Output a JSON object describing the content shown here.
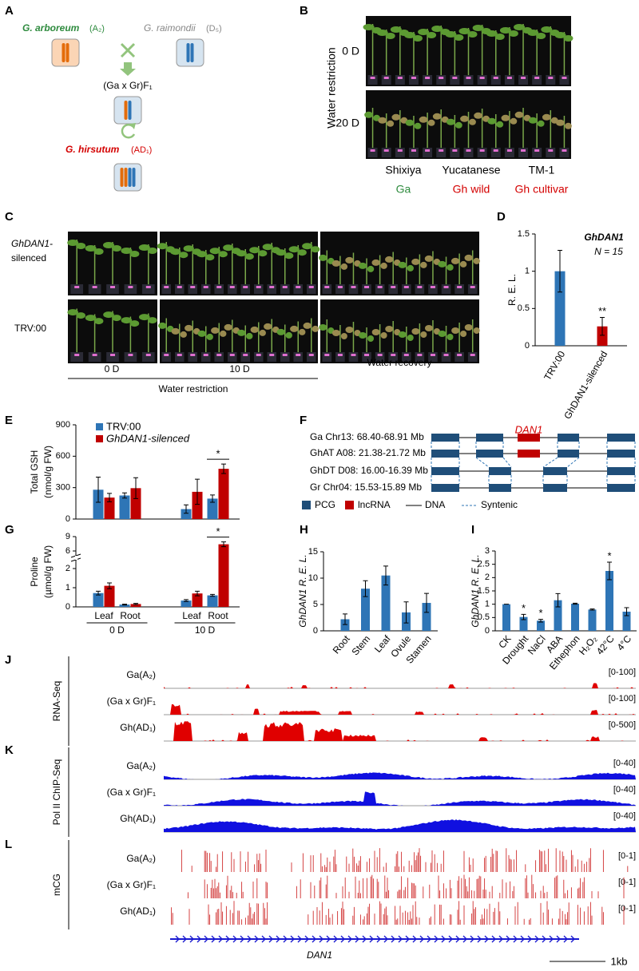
{
  "panel_labels": [
    "A",
    "B",
    "C",
    "D",
    "E",
    "F",
    "G",
    "H",
    "I",
    "J",
    "K",
    "L"
  ],
  "panel_a": {
    "parent1": "G. arboreum",
    "parent1_genome": "(A₂)",
    "parent2": "G. raimondii",
    "parent2_genome": "(D₅)",
    "hybrid": "(Ga x Gr)F₁",
    "polyploid": "G. hirsutum",
    "polyploid_genome": "(AD₁)"
  },
  "panel_b": {
    "axis_label": "Water restriction",
    "rows": [
      "0 D",
      "20 D"
    ],
    "accessions": [
      "Shixiya",
      "Yucatanese",
      "TM-1"
    ],
    "types": [
      "Ga",
      "Gh wild",
      "Gh cultivar"
    ]
  },
  "panel_c": {
    "row1_label_lines": [
      "GhDAN1-",
      "silenced"
    ],
    "row2_label": "TRV:00",
    "timepoints": [
      "0 D",
      "10 D",
      "Water recovery"
    ],
    "axis_label": "Water restriction"
  },
  "chart_data": [
    {
      "type": "bar",
      "ylabel": "R. E. L.",
      "annotation": [
        "GhDAN1",
        "N = 15"
      ],
      "categories": [
        "TRV:00",
        "GhDAN1-silenced"
      ],
      "values": [
        1,
        0.26
      ],
      "errors": [
        0.28,
        0.12
      ],
      "colors": [
        "#2e75b6",
        "#c00000"
      ],
      "significance": [
        null,
        "**"
      ],
      "ylim": [
        0,
        1.5
      ],
      "yticks": [
        0,
        0.5,
        1,
        1.5
      ]
    },
    {
      "type": "grouped-bar",
      "ylabel": [
        "Total GSH",
        "(nmol/g FW)"
      ],
      "series": [
        {
          "name": "TRV:00",
          "color": "#2e75b6",
          "values": [
            280,
            225,
            95,
            195
          ],
          "errors": [
            120,
            25,
            40,
            35
          ]
        },
        {
          "name": "GhDAN1-silenced",
          "color": "#c00000",
          "values": [
            205,
            295,
            260,
            480
          ],
          "errors": [
            40,
            100,
            120,
            45
          ]
        }
      ],
      "significance": [
        null,
        null,
        null,
        "*"
      ],
      "ylim": [
        0,
        900
      ],
      "yticks": [
        0,
        300,
        600,
        900
      ]
    },
    {
      "type": "grouped-bar",
      "ylabel": [
        "Proline",
        "(µmol/g FW)"
      ],
      "categories": [
        "Leaf",
        "Root",
        "Leaf",
        "Root"
      ],
      "groups": [
        "0 D",
        "10 D"
      ],
      "series": [
        {
          "color": "#2e75b6",
          "values": [
            0.72,
            0.12,
            0.33,
            0.6
          ],
          "errors": [
            0.1,
            0.02,
            0.05,
            0.05
          ]
        },
        {
          "color": "#c00000",
          "values": [
            1.1,
            0.15,
            0.7,
            7.4
          ],
          "errors": [
            0.15,
            0.03,
            0.12,
            0.5
          ]
        }
      ],
      "significance": [
        null,
        null,
        null,
        "*"
      ],
      "ylim": [
        0,
        9
      ],
      "yticks": [
        0,
        1,
        2,
        6,
        9
      ],
      "axis_break": [
        2,
        6
      ]
    },
    {
      "type": "bar",
      "ylabel": "GhDAN1 R. E. L.",
      "categories": [
        "Root",
        "Stem",
        "Leaf",
        "Ovule",
        "Stamen"
      ],
      "values": [
        2.2,
        8,
        10.5,
        3.5,
        5.3
      ],
      "errors": [
        1,
        1.5,
        1.8,
        2,
        1.8
      ],
      "color": "#2e75b6",
      "ylim": [
        0,
        15
      ],
      "yticks": [
        0,
        5,
        10,
        15
      ]
    },
    {
      "type": "bar",
      "ylabel": "GhDAN1 R. E. L.",
      "categories": [
        "CK",
        "Drought",
        "NaCl",
        "ABA",
        "Ethephon",
        "H₂O₂",
        "42°C",
        "4°C"
      ],
      "values": [
        1,
        0.52,
        0.38,
        1.15,
        1.02,
        0.8,
        2.25,
        0.72
      ],
      "errors": [
        0,
        0.1,
        0.05,
        0.25,
        0.02,
        0.02,
        0.33,
        0.15
      ],
      "color": "#2e75b6",
      "significance": [
        null,
        "*",
        "*",
        null,
        null,
        null,
        "*",
        null
      ],
      "ylim": [
        0,
        3
      ],
      "yticks": [
        0,
        0.5,
        1,
        1.5,
        2,
        2.5,
        3
      ]
    }
  ],
  "panel_g": {
    "gene": "DAN1",
    "loci": [
      "Ga Chr13: 68.40-68.91 Mb",
      "GhAT A08: 21.38-21.72 Mb",
      "GhDT D08: 16.00-16.39 Mb",
      "Gr Chr04: 15.53-15.89 Mb"
    ],
    "legend": [
      "PCG",
      "lncRNA",
      "DNA",
      "Syntenic"
    ]
  },
  "tracks": {
    "samples": [
      "Ga(A₂)",
      "(Ga x Gr)F₁",
      "Gh(AD₁)"
    ],
    "panels": [
      {
        "assay": "RNA-Seq",
        "ranges": [
          "[0-100]",
          "[0-100]",
          "[0-500]"
        ]
      },
      {
        "assay": "Pol II ChIP-Seq",
        "ranges": [
          "[0-40]",
          "[0-40]",
          "[0-40]"
        ]
      },
      {
        "assay": "mCG",
        "ranges": [
          "[0-1]",
          "[0-1]",
          "[0-1]"
        ]
      }
    ],
    "gene": "DAN1",
    "scale": "1kb"
  }
}
